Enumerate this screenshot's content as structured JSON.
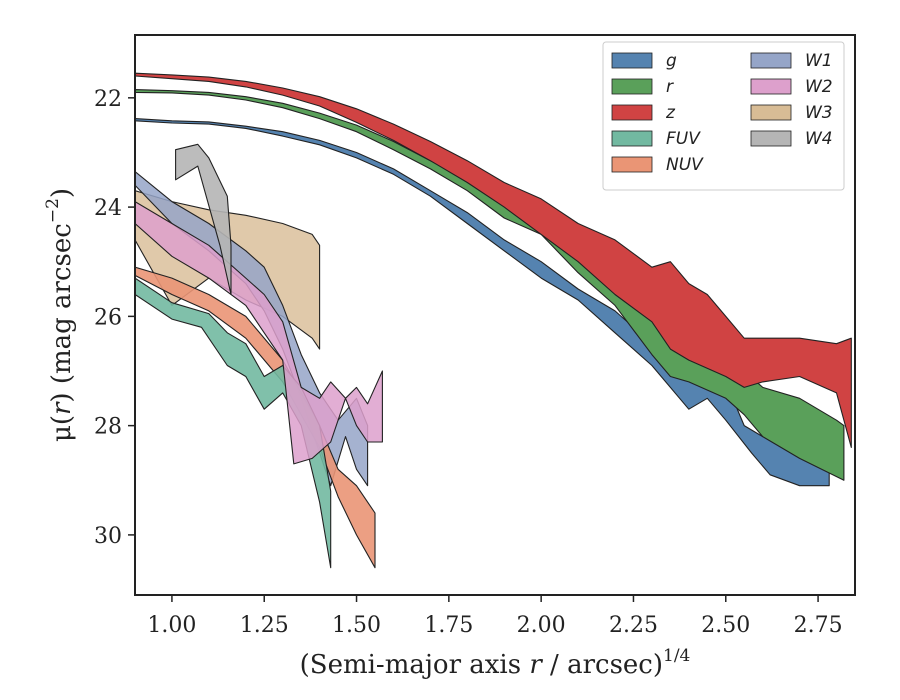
{
  "chart_data": {
    "type": "area",
    "xlabel_main": "(Semi-major axis ",
    "xlabel_var": "r",
    "xlabel_tail": " / arcsec)",
    "xlabel_sup": "1/4",
    "ylabel_pre": "μ(",
    "ylabel_var": "r",
    "ylabel_post": ") (mag arcsec",
    "ylabel_sup": "−2",
    "ylabel_end": ")",
    "xlim": [
      0.9,
      2.85
    ],
    "ylim": [
      31.1,
      20.85
    ],
    "y_inverted": true,
    "x_ticks": [
      {
        "v": 1.0,
        "label": "1.00"
      },
      {
        "v": 1.25,
        "label": "1.25"
      },
      {
        "v": 1.5,
        "label": "1.50"
      },
      {
        "v": 1.75,
        "label": "1.75"
      },
      {
        "v": 2.0,
        "label": "2.00"
      },
      {
        "v": 2.25,
        "label": "2.25"
      },
      {
        "v": 2.5,
        "label": "2.50"
      },
      {
        "v": 2.75,
        "label": "2.75"
      }
    ],
    "y_ticks": [
      {
        "v": 22,
        "label": "22"
      },
      {
        "v": 24,
        "label": "24"
      },
      {
        "v": 26,
        "label": "26"
      },
      {
        "v": 28,
        "label": "28"
      },
      {
        "v": 30,
        "label": "30"
      }
    ],
    "grid": false,
    "legend_position": "top-right",
    "series": [
      {
        "name": "W3",
        "color": "#d8bc95",
        "alpha": 0.8,
        "upper": [
          [
            0.9,
            23.7
          ],
          [
            1.0,
            23.9
          ],
          [
            1.1,
            24.05
          ],
          [
            1.2,
            24.15
          ],
          [
            1.3,
            24.3
          ],
          [
            1.38,
            24.5
          ],
          [
            1.4,
            24.7
          ]
        ],
        "lower": [
          [
            0.9,
            24.6
          ],
          [
            1.0,
            25.8
          ],
          [
            1.1,
            25.3
          ],
          [
            1.2,
            25.7
          ],
          [
            1.3,
            26.0
          ],
          [
            1.38,
            26.4
          ],
          [
            1.4,
            26.6
          ]
        ]
      },
      {
        "name": "W1",
        "color": "#95a5c8",
        "alpha": 0.85,
        "upper": [
          [
            0.9,
            23.35
          ],
          [
            1.0,
            23.9
          ],
          [
            1.1,
            24.3
          ],
          [
            1.2,
            24.8
          ],
          [
            1.25,
            25.1
          ],
          [
            1.3,
            25.8
          ],
          [
            1.35,
            26.7
          ],
          [
            1.4,
            27.4
          ],
          [
            1.45,
            27.9
          ],
          [
            1.5,
            27.5
          ],
          [
            1.53,
            28.0
          ]
        ],
        "lower": [
          [
            0.9,
            23.6
          ],
          [
            1.0,
            24.3
          ],
          [
            1.1,
            24.8
          ],
          [
            1.2,
            25.4
          ],
          [
            1.25,
            25.9
          ],
          [
            1.3,
            26.6
          ],
          [
            1.35,
            27.5
          ],
          [
            1.4,
            28.5
          ],
          [
            1.43,
            29.1
          ],
          [
            1.47,
            28.2
          ],
          [
            1.5,
            28.8
          ],
          [
            1.53,
            29.1
          ]
        ]
      },
      {
        "name": "NUV",
        "color": "#ea9575",
        "alpha": 0.9,
        "upper": [
          [
            0.9,
            25.1
          ],
          [
            1.0,
            25.3
          ],
          [
            1.1,
            25.6
          ],
          [
            1.2,
            26.0
          ],
          [
            1.3,
            26.8
          ],
          [
            1.4,
            28.0
          ],
          [
            1.45,
            28.8
          ],
          [
            1.5,
            29.1
          ],
          [
            1.55,
            29.6
          ]
        ],
        "lower": [
          [
            0.9,
            25.25
          ],
          [
            1.0,
            25.6
          ],
          [
            1.1,
            25.9
          ],
          [
            1.2,
            26.4
          ],
          [
            1.3,
            27.2
          ],
          [
            1.4,
            28.4
          ],
          [
            1.45,
            29.3
          ],
          [
            1.5,
            30.0
          ],
          [
            1.55,
            30.6
          ]
        ]
      },
      {
        "name": "FUV",
        "color": "#72b9a1",
        "alpha": 0.9,
        "upper": [
          [
            0.9,
            25.3
          ],
          [
            1.0,
            25.75
          ],
          [
            1.1,
            25.95
          ],
          [
            1.15,
            26.3
          ],
          [
            1.2,
            26.5
          ],
          [
            1.25,
            27.1
          ],
          [
            1.3,
            26.9
          ],
          [
            1.35,
            27.3
          ],
          [
            1.4,
            28.0
          ],
          [
            1.43,
            29.2
          ]
        ],
        "lower": [
          [
            0.9,
            25.6
          ],
          [
            1.0,
            26.05
          ],
          [
            1.08,
            26.2
          ],
          [
            1.15,
            26.9
          ],
          [
            1.2,
            27.1
          ],
          [
            1.25,
            27.7
          ],
          [
            1.3,
            27.4
          ],
          [
            1.35,
            28.0
          ],
          [
            1.4,
            29.4
          ],
          [
            1.43,
            30.6
          ]
        ]
      },
      {
        "name": "W2",
        "color": "#dda0cc",
        "alpha": 0.85,
        "upper": [
          [
            0.9,
            23.9
          ],
          [
            1.0,
            24.3
          ],
          [
            1.1,
            24.7
          ],
          [
            1.2,
            25.3
          ],
          [
            1.25,
            25.6
          ],
          [
            1.3,
            26.1
          ],
          [
            1.35,
            27.3
          ],
          [
            1.4,
            27.5
          ],
          [
            1.43,
            27.2
          ],
          [
            1.47,
            27.5
          ],
          [
            1.5,
            27.3
          ],
          [
            1.53,
            27.6
          ],
          [
            1.57,
            27.0
          ]
        ],
        "lower": [
          [
            0.9,
            24.3
          ],
          [
            1.0,
            24.9
          ],
          [
            1.1,
            25.3
          ],
          [
            1.2,
            25.8
          ],
          [
            1.25,
            26.3
          ],
          [
            1.3,
            26.8
          ],
          [
            1.33,
            28.7
          ],
          [
            1.38,
            28.6
          ],
          [
            1.43,
            28.3
          ],
          [
            1.47,
            27.5
          ],
          [
            1.5,
            28.0
          ],
          [
            1.53,
            28.3
          ],
          [
            1.57,
            28.3
          ]
        ]
      },
      {
        "name": "W4",
        "color": "#b5b5b5",
        "alpha": 0.9,
        "upper": [
          [
            1.01,
            22.95
          ],
          [
            1.07,
            22.85
          ],
          [
            1.1,
            23.1
          ],
          [
            1.15,
            23.8
          ],
          [
            1.16,
            24.7
          ]
        ],
        "lower": [
          [
            1.01,
            23.5
          ],
          [
            1.07,
            23.25
          ],
          [
            1.13,
            24.7
          ],
          [
            1.16,
            25.6
          ]
        ]
      },
      {
        "name": "g",
        "color": "#5583b0",
        "alpha": 1.0,
        "upper": [
          [
            0.9,
            22.38
          ],
          [
            1.0,
            22.42
          ],
          [
            1.1,
            22.44
          ],
          [
            1.2,
            22.52
          ],
          [
            1.3,
            22.62
          ],
          [
            1.4,
            22.78
          ],
          [
            1.5,
            23.0
          ],
          [
            1.6,
            23.3
          ],
          [
            1.7,
            23.7
          ],
          [
            1.8,
            24.1
          ],
          [
            1.9,
            24.6
          ],
          [
            2.0,
            25.0
          ],
          [
            2.1,
            25.5
          ],
          [
            2.2,
            25.9
          ],
          [
            2.3,
            26.5
          ],
          [
            2.35,
            26.6
          ],
          [
            2.4,
            27.0
          ],
          [
            2.5,
            27.2
          ],
          [
            2.55,
            28.0
          ],
          [
            2.6,
            28.2
          ],
          [
            2.65,
            28.0
          ],
          [
            2.7,
            28.2
          ],
          [
            2.75,
            28.6
          ],
          [
            2.78,
            28.8
          ]
        ],
        "lower": [
          [
            2.78,
            29.1
          ],
          [
            2.7,
            29.1
          ],
          [
            2.62,
            28.9
          ],
          [
            2.57,
            28.5
          ],
          [
            2.5,
            27.9
          ],
          [
            2.45,
            27.5
          ],
          [
            2.4,
            27.7
          ],
          [
            2.3,
            26.9
          ],
          [
            2.2,
            26.3
          ],
          [
            2.1,
            25.7
          ],
          [
            2.0,
            25.3
          ],
          [
            1.9,
            24.8
          ],
          [
            1.8,
            24.3
          ],
          [
            1.7,
            23.8
          ],
          [
            1.6,
            23.4
          ],
          [
            1.5,
            23.1
          ],
          [
            1.4,
            22.86
          ],
          [
            1.3,
            22.7
          ],
          [
            1.2,
            22.56
          ],
          [
            1.1,
            22.48
          ],
          [
            1.0,
            22.46
          ],
          [
            0.9,
            22.42
          ]
        ]
      },
      {
        "name": "r",
        "color": "#5aa05a",
        "alpha": 1.0,
        "upper": [
          [
            0.9,
            21.85
          ],
          [
            1.0,
            21.87
          ],
          [
            1.1,
            21.9
          ],
          [
            1.2,
            21.98
          ],
          [
            1.3,
            22.1
          ],
          [
            1.4,
            22.28
          ],
          [
            1.5,
            22.5
          ],
          [
            1.6,
            22.8
          ],
          [
            1.7,
            23.15
          ],
          [
            1.8,
            23.5
          ],
          [
            1.9,
            23.9
          ],
          [
            2.0,
            24.3
          ],
          [
            2.1,
            24.7
          ],
          [
            2.2,
            25.3
          ],
          [
            2.3,
            25.8
          ],
          [
            2.35,
            26.0
          ],
          [
            2.4,
            26.2
          ],
          [
            2.5,
            26.6
          ],
          [
            2.55,
            27.0
          ],
          [
            2.6,
            27.3
          ],
          [
            2.7,
            27.5
          ],
          [
            2.8,
            27.9
          ],
          [
            2.82,
            28.0
          ]
        ],
        "lower": [
          [
            2.82,
            29.0
          ],
          [
            2.7,
            28.6
          ],
          [
            2.6,
            28.2
          ],
          [
            2.55,
            27.8
          ],
          [
            2.5,
            27.5
          ],
          [
            2.4,
            27.2
          ],
          [
            2.35,
            27.1
          ],
          [
            2.3,
            26.7
          ],
          [
            2.2,
            25.8
          ],
          [
            2.1,
            25.2
          ],
          [
            2.0,
            24.5
          ],
          [
            1.9,
            24.2
          ],
          [
            1.8,
            23.7
          ],
          [
            1.7,
            23.3
          ],
          [
            1.6,
            22.95
          ],
          [
            1.5,
            22.62
          ],
          [
            1.4,
            22.38
          ],
          [
            1.3,
            22.18
          ],
          [
            1.2,
            22.04
          ],
          [
            1.1,
            21.95
          ],
          [
            1.0,
            21.91
          ],
          [
            0.9,
            21.9
          ]
        ]
      },
      {
        "name": "z",
        "color": "#d04343",
        "alpha": 1.0,
        "upper": [
          [
            0.9,
            21.55
          ],
          [
            1.0,
            21.58
          ],
          [
            1.1,
            21.62
          ],
          [
            1.2,
            21.7
          ],
          [
            1.3,
            21.82
          ],
          [
            1.4,
            21.98
          ],
          [
            1.5,
            22.2
          ],
          [
            1.6,
            22.48
          ],
          [
            1.7,
            22.8
          ],
          [
            1.8,
            23.15
          ],
          [
            1.9,
            23.55
          ],
          [
            2.0,
            23.85
          ],
          [
            2.1,
            24.3
          ],
          [
            2.2,
            24.6
          ],
          [
            2.3,
            25.1
          ],
          [
            2.35,
            25.0
          ],
          [
            2.4,
            25.4
          ],
          [
            2.45,
            25.6
          ],
          [
            2.5,
            26.0
          ],
          [
            2.55,
            26.4
          ],
          [
            2.6,
            26.4
          ],
          [
            2.7,
            26.4
          ],
          [
            2.8,
            26.5
          ],
          [
            2.84,
            26.4
          ]
        ],
        "lower": [
          [
            2.84,
            28.4
          ],
          [
            2.8,
            27.4
          ],
          [
            2.7,
            27.1
          ],
          [
            2.6,
            27.2
          ],
          [
            2.55,
            27.3
          ],
          [
            2.5,
            27.1
          ],
          [
            2.4,
            26.8
          ],
          [
            2.35,
            26.6
          ],
          [
            2.3,
            26.1
          ],
          [
            2.2,
            25.6
          ],
          [
            2.1,
            25.0
          ],
          [
            2.0,
            24.5
          ],
          [
            1.9,
            24.0
          ],
          [
            1.8,
            23.55
          ],
          [
            1.7,
            23.15
          ],
          [
            1.6,
            22.78
          ],
          [
            1.5,
            22.45
          ],
          [
            1.4,
            22.15
          ],
          [
            1.3,
            21.95
          ],
          [
            1.2,
            21.8
          ],
          [
            1.1,
            21.7
          ],
          [
            1.0,
            21.65
          ],
          [
            0.9,
            21.6
          ]
        ]
      }
    ],
    "legend": [
      {
        "name": "g",
        "color": "#5583b0"
      },
      {
        "name": "r",
        "color": "#5aa05a"
      },
      {
        "name": "z",
        "color": "#d04343"
      },
      {
        "name": "FUV",
        "color": "#72b9a1"
      },
      {
        "name": "NUV",
        "color": "#ea9575"
      },
      {
        "name": "W1",
        "color": "#95a5c8"
      },
      {
        "name": "W2",
        "color": "#dda0cc"
      },
      {
        "name": "W3",
        "color": "#d8bc95"
      },
      {
        "name": "W4",
        "color": "#b5b5b5"
      }
    ]
  }
}
